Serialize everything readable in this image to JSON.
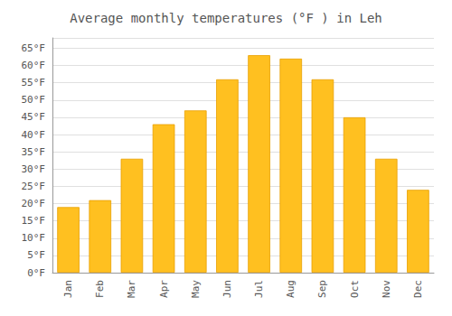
{
  "chart_data": {
    "type": "bar",
    "title": "Average monthly temperatures (°F ) in Leh",
    "categories": [
      "Jan",
      "Feb",
      "Mar",
      "Apr",
      "May",
      "Jun",
      "Jul",
      "Aug",
      "Sep",
      "Oct",
      "Nov",
      "Dec"
    ],
    "values": [
      19,
      21,
      33,
      43,
      47,
      56,
      63,
      62,
      56,
      45,
      33,
      24
    ],
    "color": "#FFC020",
    "ylim": [
      0,
      68
    ],
    "yticks": [
      {
        "value": 0,
        "label": "0°F"
      },
      {
        "value": 5,
        "label": "5°F"
      },
      {
        "value": 10,
        "label": "10°F"
      },
      {
        "value": 15,
        "label": "15°F"
      },
      {
        "value": 20,
        "label": "20°F"
      },
      {
        "value": 25,
        "label": "25°F"
      },
      {
        "value": 30,
        "label": "30°F"
      },
      {
        "value": 35,
        "label": "35°F"
      },
      {
        "value": 40,
        "label": "40°F"
      },
      {
        "value": 45,
        "label": "45°F"
      },
      {
        "value": 50,
        "label": "50°F"
      },
      {
        "value": 55,
        "label": "55°F"
      },
      {
        "value": 60,
        "label": "60°F"
      },
      {
        "value": 65,
        "label": "65°F"
      }
    ],
    "grid": true
  }
}
